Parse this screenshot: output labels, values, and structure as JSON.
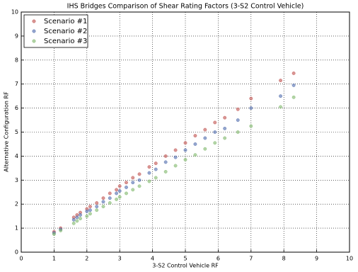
{
  "chart_data": {
    "type": "scatter",
    "title": "IHS Bridges Comparison of Shear Rating Factors (3-S2 Control Vehicle)",
    "x_label": "3-S2 Control Vehicle RF",
    "y_label": "Alternative Configuration RF",
    "x": [
      1.0,
      1.2,
      1.6,
      1.7,
      1.8,
      2.0,
      2.1,
      2.3,
      2.5,
      2.7,
      2.9,
      3.0,
      3.2,
      3.4,
      3.6,
      3.9,
      4.1,
      4.4,
      4.7,
      5.0,
      5.3,
      5.6,
      5.9,
      6.2,
      6.6,
      7.0,
      7.9,
      8.3
    ],
    "series": [
      {
        "name": "Scenario #1",
        "color": "#c0504d",
        "values": [
          0.85,
          1.0,
          1.45,
          1.55,
          1.65,
          1.8,
          1.9,
          2.05,
          2.25,
          2.45,
          2.6,
          2.75,
          2.9,
          3.1,
          3.25,
          3.55,
          3.7,
          4.0,
          4.25,
          4.55,
          4.85,
          5.1,
          5.4,
          5.6,
          5.95,
          6.4,
          7.15,
          7.45
        ]
      },
      {
        "name": "Scenario #2",
        "color": "#4f6bad",
        "values": [
          0.8,
          0.95,
          1.35,
          1.45,
          1.55,
          1.7,
          1.75,
          1.9,
          2.1,
          2.25,
          2.45,
          2.55,
          2.7,
          2.9,
          3.0,
          3.3,
          3.45,
          3.75,
          3.95,
          4.25,
          4.5,
          4.75,
          5.0,
          5.15,
          5.5,
          6.0,
          6.5,
          6.95
        ]
      },
      {
        "name": "Scenario #3",
        "color": "#7fb86a",
        "values": [
          0.75,
          0.9,
          1.2,
          1.3,
          1.4,
          1.5,
          1.6,
          1.75,
          1.9,
          2.05,
          2.2,
          2.3,
          2.45,
          2.6,
          2.75,
          2.95,
          3.1,
          3.35,
          3.6,
          3.85,
          4.05,
          4.3,
          4.55,
          4.75,
          5.0,
          5.25,
          6.05,
          6.45
        ]
      }
    ],
    "xlim": [
      0,
      10
    ],
    "ylim": [
      0,
      10
    ],
    "xticks": [
      0,
      1,
      2,
      3,
      4,
      5,
      6,
      7,
      8,
      9,
      10
    ],
    "yticks": [
      0,
      1,
      2,
      3,
      4,
      5,
      6,
      7,
      8,
      9,
      10
    ],
    "grid": true,
    "legend": "upper-left"
  }
}
